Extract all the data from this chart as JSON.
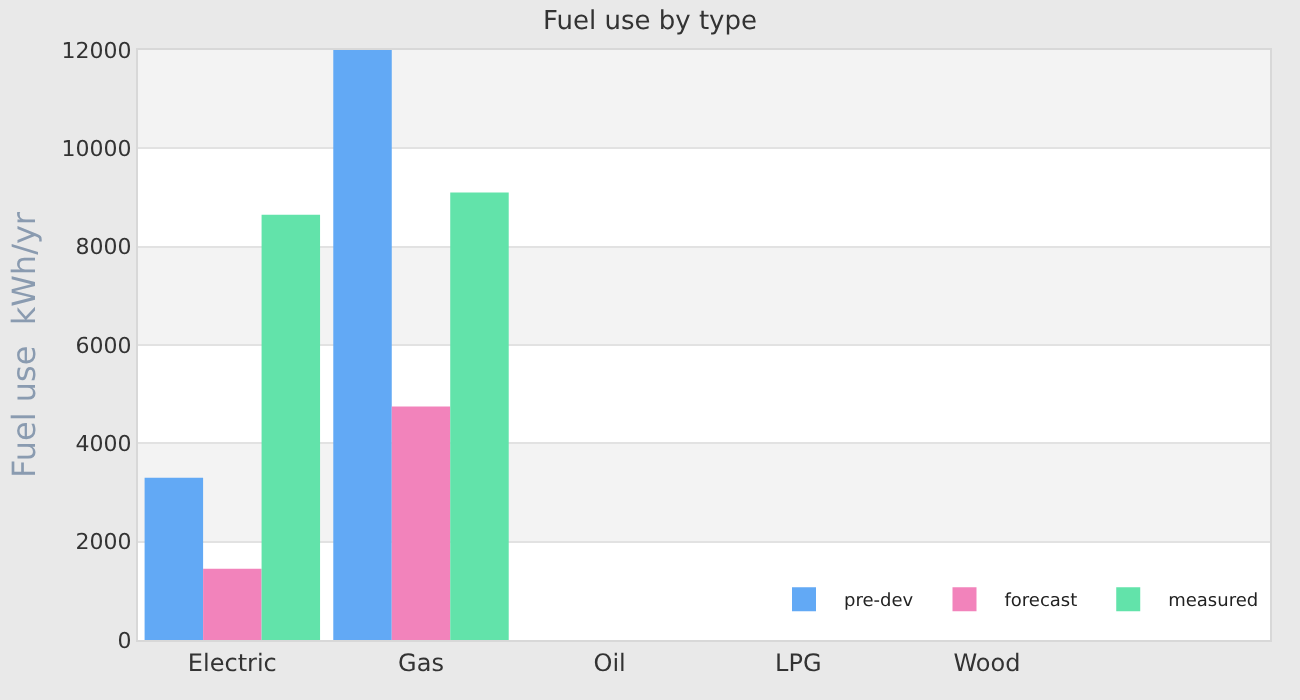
{
  "chart_data": {
    "type": "bar",
    "title": "Fuel use by type",
    "ylabel": "Fuel use  kWh/yr",
    "categories": [
      "Electric",
      "Gas",
      "Oil",
      "LPG",
      "Wood",
      null
    ],
    "series": [
      {
        "name": "pre-dev",
        "color": "#62a9f5",
        "values": [
          3300,
          12000,
          null,
          null,
          null,
          null
        ]
      },
      {
        "name": "forecast",
        "color": "#f283bb",
        "values": [
          1450,
          4750,
          null,
          null,
          null,
          null
        ]
      },
      {
        "name": "measured",
        "color": "#62e3aa",
        "values": [
          8650,
          9100,
          null,
          null,
          null,
          null
        ]
      }
    ],
    "ylim": [
      0,
      12000
    ],
    "yticks": [
      0,
      2000,
      4000,
      6000,
      8000,
      10000,
      12000
    ],
    "grid": "y",
    "legend": "bottom right"
  }
}
